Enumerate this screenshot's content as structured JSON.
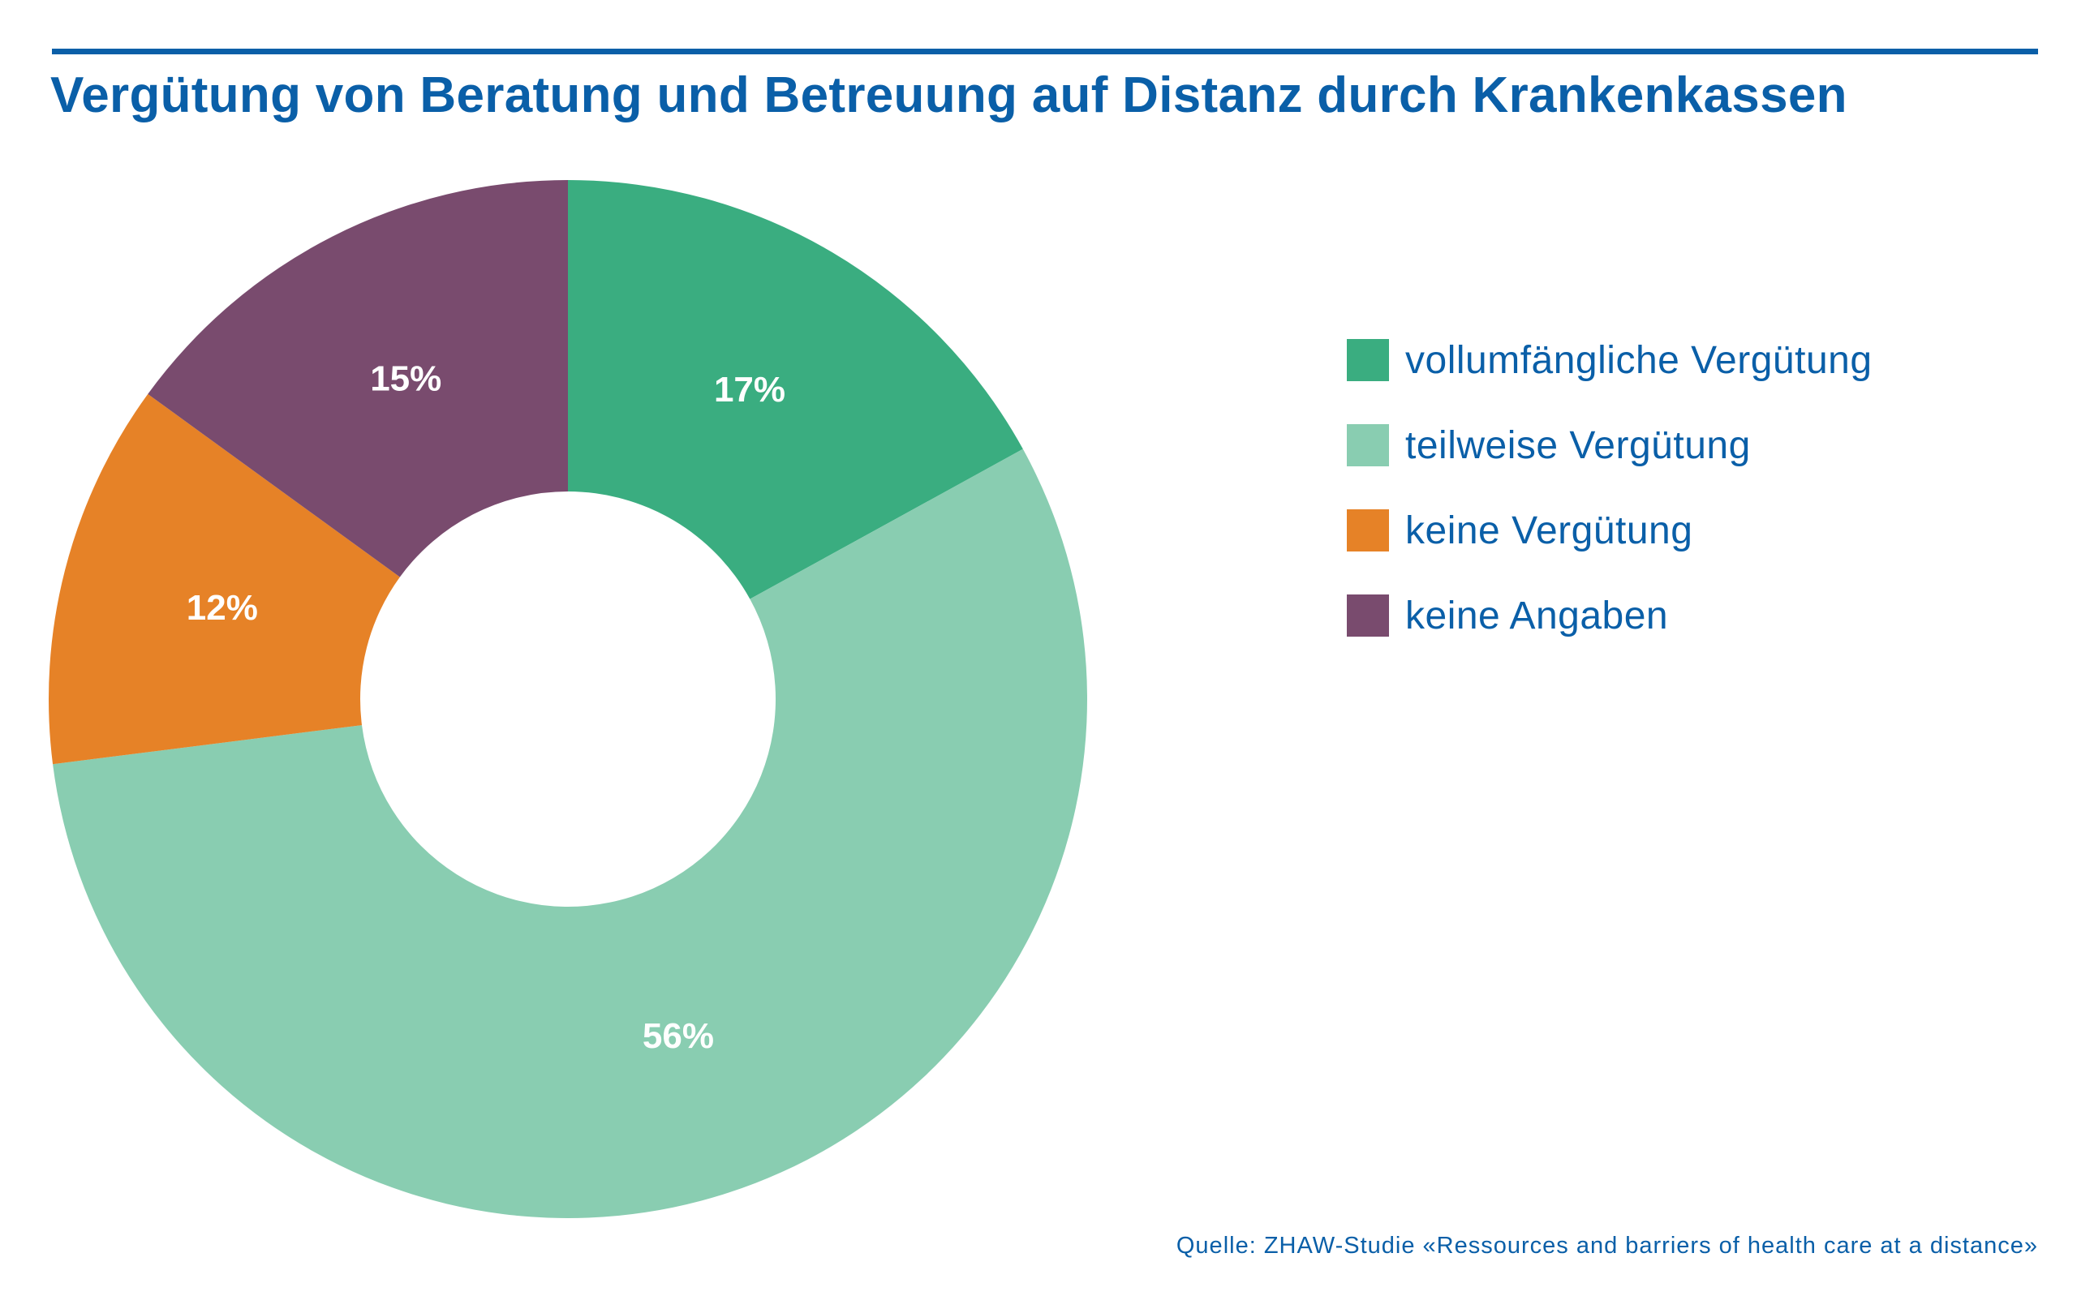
{
  "title": "Vergütung von Beratung und Betreuung auf Distanz durch Krankenkassen",
  "source": "Quelle: ZHAW-Studie «Ressources and barriers of health care at a distance»",
  "chart_data": {
    "type": "pie",
    "variant": "donut",
    "title": "Vergütung von Beratung und Betreuung auf Distanz durch Krankenkassen",
    "unit": "%",
    "legend_position": "right",
    "slices": [
      {
        "label": "vollumfängliche Vergütung",
        "value": 17,
        "display": "17%",
        "color": "#3aad80"
      },
      {
        "label": "teilweise Vergütung",
        "value": 56,
        "display": "56%",
        "color": "#89cdb1"
      },
      {
        "label": "keine Vergütung",
        "value": 12,
        "display": "12%",
        "color": "#e68227"
      },
      {
        "label": "keine Angaben",
        "value": 15,
        "display": "15%",
        "color": "#794b6e"
      }
    ]
  },
  "colors": {
    "accent": "#0a5fa8",
    "label_text": "#ffffff"
  }
}
